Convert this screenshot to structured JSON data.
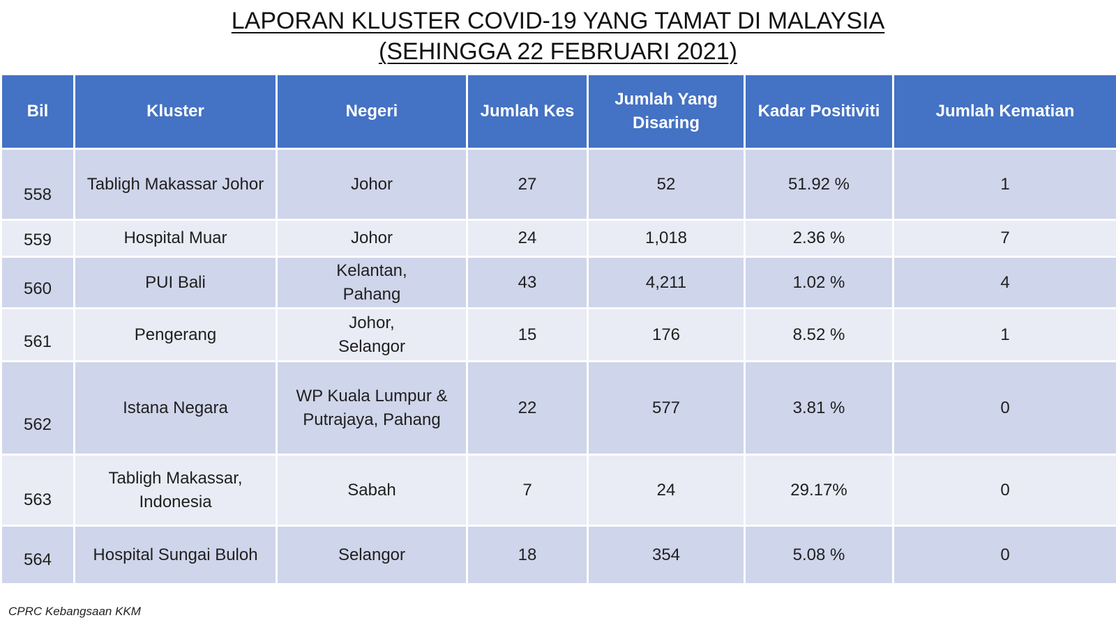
{
  "title": {
    "line1": "LAPORAN KLUSTER COVID-19 YANG TAMAT DI MALAYSIA",
    "line2": "(SEHINGGA 22 FEBRUARI 2021)"
  },
  "table": {
    "headers": {
      "bil": "Bil",
      "kluster": "Kluster",
      "negeri": "Negeri",
      "jumlah_kes": "Jumlah Kes",
      "jumlah_disaring_1": "Jumlah Yang",
      "jumlah_disaring_2": "Disaring",
      "kadar_positiviti": "Kadar Positiviti",
      "jumlah_kematian": "Jumlah Kematian"
    },
    "rows": [
      {
        "bil": "558",
        "kluster": [
          "Tabligh Makassar Johor"
        ],
        "negeri": [
          "Johor"
        ],
        "kes": "27",
        "disaring": "52",
        "positiviti": "51.92 %",
        "kematian": "1"
      },
      {
        "bil": "559",
        "kluster": [
          "Hospital Muar"
        ],
        "negeri": [
          "Johor"
        ],
        "kes": "24",
        "disaring": "1,018",
        "positiviti": "2.36 %",
        "kematian": "7"
      },
      {
        "bil": "560",
        "kluster": [
          "PUI Bali"
        ],
        "negeri": [
          "Kelantan,",
          "Pahang"
        ],
        "kes": "43",
        "disaring": "4,211",
        "positiviti": "1.02 %",
        "kematian": "4"
      },
      {
        "bil": "561",
        "kluster": [
          "Pengerang"
        ],
        "negeri": [
          "Johor,",
          "Selangor"
        ],
        "kes": "15",
        "disaring": "176",
        "positiviti": "8.52 %",
        "kematian": "1"
      },
      {
        "bil": "562",
        "kluster": [
          "Istana Negara"
        ],
        "negeri": [
          "WP Kuala Lumpur &",
          "Putrajaya, Pahang"
        ],
        "kes": "22",
        "disaring": "577",
        "positiviti": "3.81 %",
        "kematian": "0"
      },
      {
        "bil": "563",
        "kluster": [
          "Tabligh Makassar,",
          "Indonesia"
        ],
        "negeri": [
          "Sabah"
        ],
        "kes": "7",
        "disaring": "24",
        "positiviti": "29.17%",
        "kematian": "0"
      },
      {
        "bil": "564",
        "kluster": [
          "Hospital Sungai Buloh"
        ],
        "negeri": [
          "Selangor"
        ],
        "kes": "18",
        "disaring": "354",
        "positiviti": "5.08 %",
        "kematian": "0"
      }
    ]
  },
  "footer": "CPRC Kebangsaan KKM",
  "colors": {
    "header_bg": "#4472c4",
    "row_odd_bg": "#cfd5ea",
    "row_even_bg": "#e9ebf5"
  }
}
